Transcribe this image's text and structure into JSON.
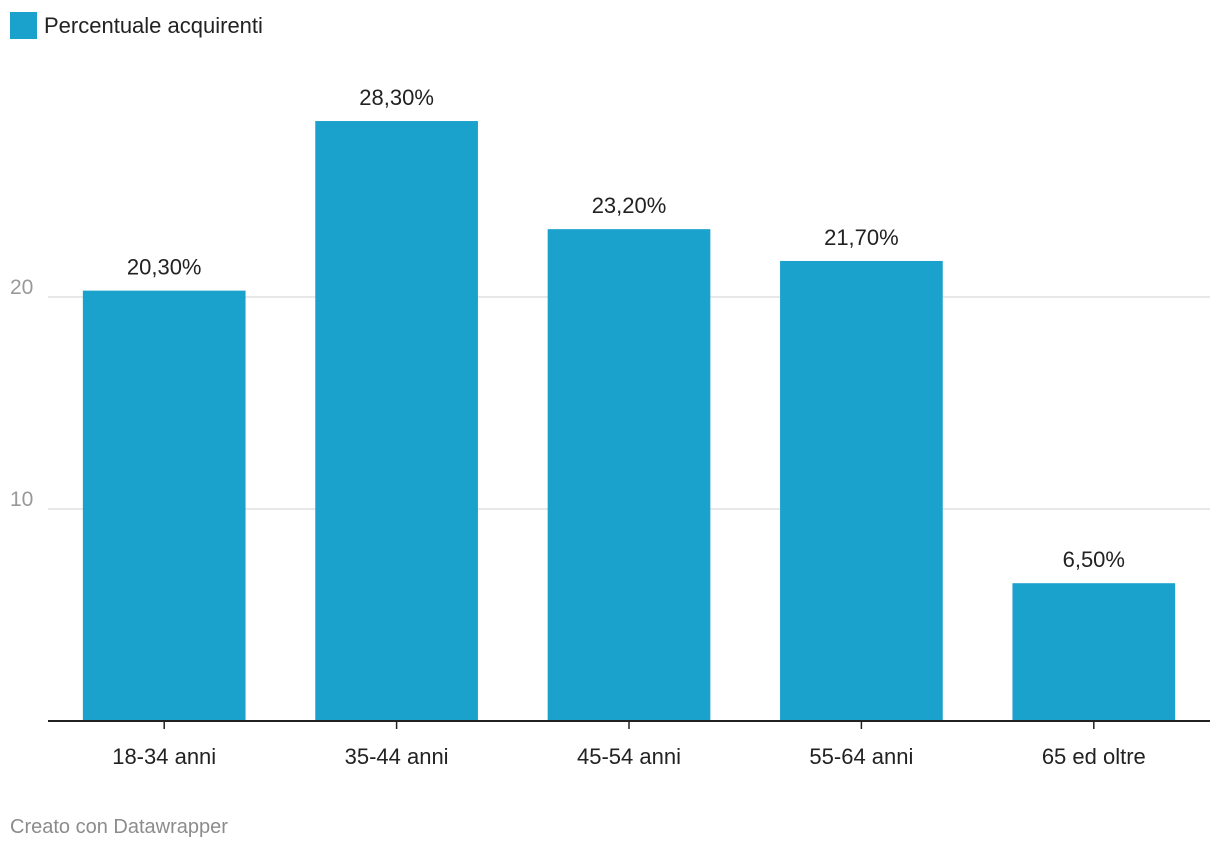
{
  "legend": {
    "label": "Percentuale acquirenti"
  },
  "credit": "Creato con Datawrapper",
  "colors": {
    "bar": "#1aa1cc",
    "grid": "#e0e0e0",
    "axis": "#222222",
    "tick_text": "#999999",
    "label_text": "#222222"
  },
  "chart_data": {
    "type": "bar",
    "categories": [
      "18-34 anni",
      "35-44 anni",
      "45-54 anni",
      "55-64 anni",
      "65 ed oltre"
    ],
    "series": [
      {
        "name": "Percentuale acquirenti",
        "values": [
          20.3,
          28.3,
          23.2,
          21.7,
          6.5
        ]
      }
    ],
    "data_labels": [
      "20,30%",
      "28,30%",
      "23,20%",
      "21,70%",
      "6,50%"
    ],
    "yticks": [
      10,
      20
    ],
    "ylim": [
      0,
      30
    ],
    "grid": true,
    "legend_position": "top-left"
  }
}
